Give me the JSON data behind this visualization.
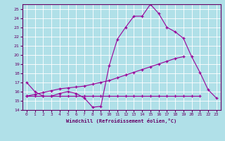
{
  "xlabel": "Windchill (Refroidissement éolien,°C)",
  "x": [
    0,
    1,
    2,
    3,
    4,
    5,
    6,
    7,
    8,
    9,
    10,
    11,
    12,
    13,
    14,
    15,
    16,
    17,
    18,
    19,
    20,
    21,
    22,
    23
  ],
  "line_max": [
    17.0,
    16.0,
    15.5,
    15.5,
    15.8,
    16.0,
    15.8,
    15.5,
    14.8,
    14.5,
    18.8,
    21.7,
    23.0,
    24.2,
    24.2,
    25.5,
    24.5,
    23.0,
    22.5,
    21.8,
    19.8,
    null,
    null,
    null
  ],
  "line_main": [
    17.0,
    16.0,
    15.5,
    15.5,
    15.8,
    16.0,
    15.8,
    15.3,
    14.3,
    14.4,
    18.8,
    21.7,
    23.0,
    24.2,
    24.2,
    25.5,
    24.5,
    23.0,
    22.5,
    21.8,
    19.8,
    18.1,
    16.2,
    15.3
  ],
  "line_flat": [
    15.5,
    15.5,
    15.5,
    15.5,
    15.5,
    15.5,
    15.5,
    15.5,
    15.5,
    15.5,
    15.5,
    15.5,
    15.5,
    15.5,
    15.5,
    15.5,
    15.5,
    15.5,
    15.5,
    15.5,
    15.5,
    15.5,
    null,
    null
  ],
  "line_rising": [
    15.5,
    15.7,
    15.9,
    16.1,
    16.3,
    16.4,
    16.5,
    16.6,
    16.8,
    17.0,
    17.2,
    17.5,
    17.8,
    18.1,
    18.4,
    18.7,
    19.0,
    19.3,
    19.6,
    19.8,
    null,
    null,
    null,
    null
  ],
  "ylim": [
    14,
    25.5
  ],
  "xlim": [
    -0.5,
    23.5
  ],
  "yticks": [
    14,
    15,
    16,
    17,
    18,
    19,
    20,
    21,
    22,
    23,
    24,
    25
  ],
  "xticks": [
    0,
    1,
    2,
    3,
    4,
    5,
    6,
    7,
    8,
    9,
    10,
    11,
    12,
    13,
    14,
    15,
    16,
    17,
    18,
    19,
    20,
    21,
    22,
    23
  ],
  "line_color": "#990099",
  "bg_color": "#b0e0e8",
  "grid_color": "#c8e8ee",
  "spine_color": "#660066",
  "label_color": "#660066"
}
